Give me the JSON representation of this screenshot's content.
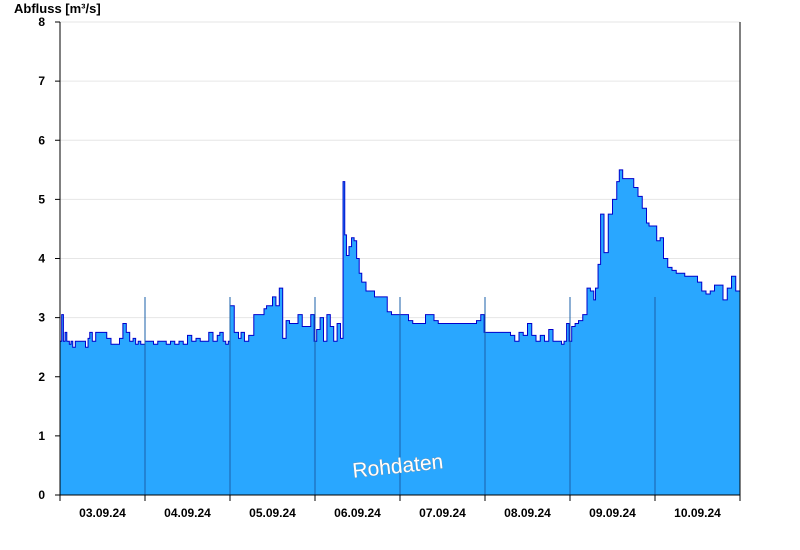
{
  "chart_data": {
    "type": "area",
    "ylabel": "Abfluss [m³/s]",
    "ylim": [
      0,
      8
    ],
    "yticks": [
      "0",
      "1",
      "2",
      "3",
      "4",
      "5",
      "6",
      "7",
      "8"
    ],
    "xlim": [
      0,
      8
    ],
    "day_boundaries": [
      1,
      2,
      3,
      4,
      5,
      6,
      7
    ],
    "xtick_labels": [
      "03.09.24",
      "04.09.24",
      "05.09.24",
      "06.09.24",
      "07.09.24",
      "08.09.24",
      "09.09.24",
      "10.09.24"
    ],
    "watermark": "Rohdaten",
    "fill_color": "#29a7ff",
    "line_color": "#0000cc",
    "grid": true,
    "series": [
      {
        "x": [
          0.0,
          0.02,
          0.04,
          0.06,
          0.08,
          0.11,
          0.13,
          0.15,
          0.18,
          0.21,
          0.24,
          0.27,
          0.3,
          0.33,
          0.35,
          0.38,
          0.42,
          0.46,
          0.5,
          0.55,
          0.6,
          0.65,
          0.7,
          0.74,
          0.78,
          0.82,
          0.86,
          0.89,
          0.92,
          0.95,
          1.0,
          1.05,
          1.1,
          1.15,
          1.2,
          1.25,
          1.3,
          1.35,
          1.4,
          1.45,
          1.5,
          1.55,
          1.6,
          1.65,
          1.7,
          1.75,
          1.8,
          1.85,
          1.88,
          1.92,
          1.95,
          1.98,
          2.0,
          2.05,
          2.1,
          2.13,
          2.17,
          2.22,
          2.28,
          2.35,
          2.4,
          2.43,
          2.47,
          2.5,
          2.54,
          2.58,
          2.62,
          2.66,
          2.7,
          2.75,
          2.8,
          2.85,
          2.9,
          2.95,
          2.99,
          3.02,
          3.06,
          3.1,
          3.14,
          3.18,
          3.22,
          3.26,
          3.3,
          3.33,
          3.35,
          3.37,
          3.4,
          3.43,
          3.46,
          3.49,
          3.52,
          3.55,
          3.6,
          3.65,
          3.7,
          3.75,
          3.8,
          3.85,
          3.9,
          3.95,
          3.99,
          4.02,
          4.06,
          4.1,
          4.15,
          4.2,
          4.25,
          4.3,
          4.35,
          4.4,
          4.45,
          4.5,
          4.55,
          4.6,
          4.65,
          4.7,
          4.75,
          4.8,
          4.85,
          4.9,
          4.95,
          4.99,
          5.0,
          5.1,
          5.2,
          5.3,
          5.35,
          5.4,
          5.45,
          5.5,
          5.55,
          5.6,
          5.65,
          5.7,
          5.75,
          5.8,
          5.85,
          5.9,
          5.93,
          5.96,
          5.99,
          6.02,
          6.06,
          6.1,
          6.15,
          6.2,
          6.24,
          6.28,
          6.3,
          6.33,
          6.36,
          6.4,
          6.45,
          6.5,
          6.55,
          6.58,
          6.62,
          6.66,
          6.7,
          6.75,
          6.8,
          6.85,
          6.9,
          6.93,
          6.96,
          6.99,
          7.02,
          7.06,
          7.1,
          7.15,
          7.2,
          7.25,
          7.3,
          7.35,
          7.4,
          7.45,
          7.5,
          7.55,
          7.6,
          7.65,
          7.7,
          7.75,
          7.8,
          7.85,
          7.9,
          7.95,
          8.0
        ],
        "y": [
          2.6,
          3.05,
          2.6,
          2.75,
          2.6,
          2.55,
          2.6,
          2.5,
          2.6,
          2.6,
          2.6,
          2.6,
          2.5,
          2.65,
          2.75,
          2.6,
          2.75,
          2.75,
          2.75,
          2.65,
          2.55,
          2.55,
          2.65,
          2.9,
          2.75,
          2.6,
          2.65,
          2.55,
          2.6,
          2.55,
          2.6,
          2.6,
          2.55,
          2.6,
          2.6,
          2.55,
          2.6,
          2.55,
          2.6,
          2.55,
          2.7,
          2.6,
          2.65,
          2.6,
          2.6,
          2.75,
          2.6,
          2.7,
          2.75,
          2.6,
          2.55,
          2.6,
          3.2,
          2.75,
          2.65,
          2.75,
          2.6,
          2.7,
          3.05,
          3.05,
          3.15,
          3.2,
          3.2,
          3.35,
          3.2,
          3.5,
          2.65,
          2.95,
          2.9,
          2.9,
          3.05,
          2.85,
          2.85,
          3.05,
          2.6,
          2.8,
          3.0,
          2.6,
          3.05,
          2.85,
          2.6,
          2.9,
          2.65,
          5.3,
          4.4,
          4.05,
          4.2,
          4.35,
          4.3,
          4.0,
          3.75,
          3.6,
          3.45,
          3.45,
          3.35,
          3.35,
          3.35,
          3.1,
          3.05,
          3.05,
          3.05,
          3.05,
          3.05,
          2.95,
          2.9,
          2.9,
          2.9,
          3.05,
          3.05,
          2.95,
          2.9,
          2.9,
          2.9,
          2.9,
          2.9,
          2.9,
          2.9,
          2.9,
          2.9,
          2.95,
          3.05,
          2.75,
          2.75,
          2.75,
          2.75,
          2.7,
          2.6,
          2.75,
          2.7,
          2.9,
          2.7,
          2.6,
          2.7,
          2.6,
          2.8,
          2.6,
          2.6,
          2.55,
          2.6,
          2.9,
          2.6,
          2.85,
          2.9,
          2.95,
          3.05,
          3.5,
          3.45,
          3.3,
          3.5,
          3.9,
          4.75,
          4.1,
          4.75,
          5.0,
          5.3,
          5.5,
          5.35,
          5.35,
          5.35,
          5.2,
          5.05,
          4.85,
          4.6,
          4.55,
          4.55,
          4.55,
          4.3,
          4.35,
          4.0,
          3.85,
          3.8,
          3.75,
          3.75,
          3.7,
          3.7,
          3.7,
          3.6,
          3.45,
          3.4,
          3.45,
          3.55,
          3.55,
          3.3,
          3.5,
          3.7,
          3.45,
          3.4
        ]
      }
    ]
  }
}
